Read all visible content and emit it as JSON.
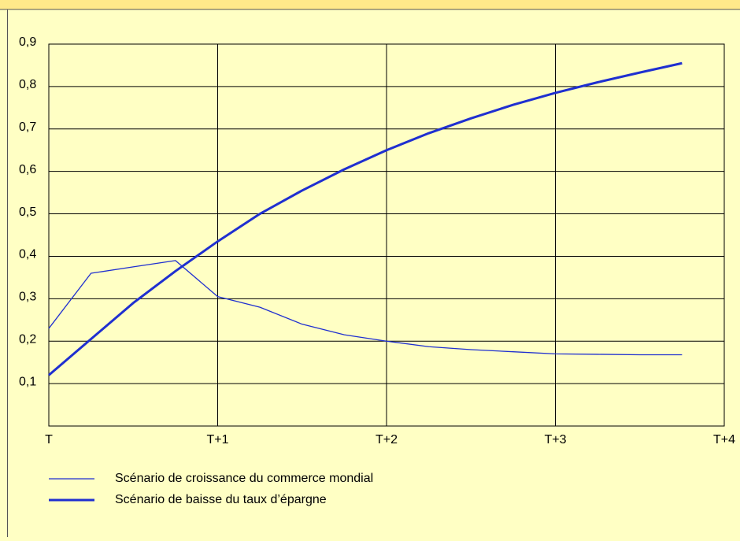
{
  "chart_data": {
    "type": "line",
    "x": [
      0,
      0.25,
      0.5,
      0.75,
      1,
      1.25,
      1.5,
      1.75,
      2,
      2.25,
      2.5,
      2.75,
      3,
      3.25,
      3.5,
      3.75
    ],
    "series": [
      {
        "name": "Scénario de croissance du commerce mondial",
        "color": "#1f2fd0",
        "width": 1.3,
        "values": [
          0.23,
          0.36,
          0.375,
          0.39,
          0.305,
          0.28,
          0.24,
          0.215,
          0.2,
          0.187,
          0.18,
          0.175,
          0.17,
          0.169,
          0.168,
          0.168
        ]
      },
      {
        "name": "Scénario de baisse du taux d’épargne",
        "color": "#1f2fd0",
        "width": 3,
        "values": [
          0.12,
          0.205,
          0.29,
          0.365,
          0.435,
          0.5,
          0.555,
          0.605,
          0.65,
          0.69,
          0.725,
          0.757,
          0.785,
          0.81,
          0.833,
          0.855
        ]
      }
    ],
    "xlim": [
      0,
      4
    ],
    "xticks": [
      {
        "value": 0,
        "label": "T"
      },
      {
        "value": 1,
        "label": "T+1"
      },
      {
        "value": 2,
        "label": "T+2"
      },
      {
        "value": 3,
        "label": "T+3"
      },
      {
        "value": 4,
        "label": "T+4"
      }
    ],
    "ylim": [
      0,
      0.9
    ],
    "yticks": [
      {
        "value": 0.1,
        "label": "0,1"
      },
      {
        "value": 0.2,
        "label": "0,2"
      },
      {
        "value": 0.3,
        "label": "0,3"
      },
      {
        "value": 0.4,
        "label": "0,4"
      },
      {
        "value": 0.5,
        "label": "0,5"
      },
      {
        "value": 0.6,
        "label": "0,6"
      },
      {
        "value": 0.7,
        "label": "0,7"
      },
      {
        "value": 0.8,
        "label": "0,8"
      },
      {
        "value": 0.9,
        "label": "0,9"
      }
    ],
    "grid": true
  }
}
